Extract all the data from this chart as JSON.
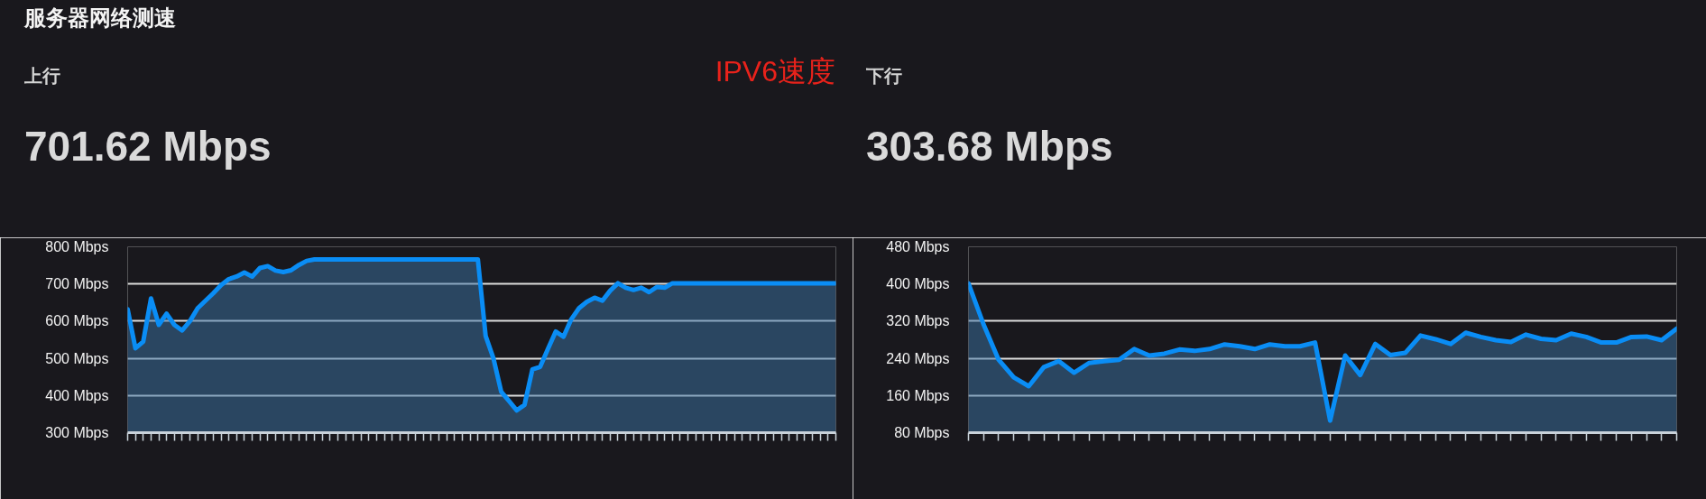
{
  "chart_data": [
    {
      "type": "area",
      "title": "上行",
      "subtitle": "701.62 Mbps",
      "annotations": [
        "服务器网络测速",
        "IPV6速度"
      ],
      "categories": [
        null,
        null,
        null,
        null,
        null,
        null,
        null,
        null,
        null,
        null,
        null,
        null,
        null,
        null,
        null,
        null,
        null,
        null,
        null,
        null,
        null,
        null,
        null,
        null,
        null,
        null,
        null,
        null,
        null,
        null,
        null,
        null,
        null,
        null,
        null,
        null,
        null,
        null,
        null,
        null,
        null,
        null,
        null,
        null,
        null,
        null,
        null,
        null,
        null,
        null,
        null,
        null,
        null,
        null,
        null,
        null,
        null,
        null,
        null,
        null,
        null,
        null,
        null,
        null,
        null,
        null,
        null,
        null,
        null,
        null,
        null,
        null,
        null,
        null,
        null,
        null,
        null,
        null,
        null,
        null,
        null,
        null,
        null,
        null,
        null,
        null,
        null,
        null,
        null,
        null,
        null,
        null
      ],
      "series": [
        {
          "color": "#0a8df5",
          "values": [
            632,
            527,
            545,
            661,
            590,
            620,
            590,
            575,
            600,
            635,
            655,
            675,
            697,
            713,
            720,
            731,
            720,
            743,
            748,
            736,
            732,
            737,
            751,
            762,
            766,
            766,
            766,
            766,
            766,
            766,
            766,
            766,
            766,
            766,
            766,
            766,
            766,
            766,
            766,
            766,
            766,
            766,
            766,
            766,
            766,
            766,
            560,
            500,
            410,
            385,
            360,
            375,
            470,
            477,
            525,
            572,
            558,
            605,
            635,
            652,
            663,
            655,
            682,
            702,
            690,
            684,
            690,
            678,
            692,
            690,
            702,
            702,
            702,
            702,
            702,
            702,
            702,
            702,
            702,
            702,
            702,
            702,
            702,
            702,
            702,
            702,
            702,
            702,
            702,
            702,
            702,
            702
          ]
        }
      ],
      "ylim": [
        300,
        800
      ],
      "yticks": [
        {
          "value": 300,
          "label": "300 Mbps"
        },
        {
          "value": 400,
          "label": "400 Mbps"
        },
        {
          "value": 500,
          "label": "500 Mbps"
        },
        {
          "value": 600,
          "label": "600 Mbps"
        },
        {
          "value": 700,
          "label": "700 Mbps"
        },
        {
          "value": 800,
          "label": "800 Mbps"
        }
      ],
      "grid": "y",
      "tick_labels": "y"
    },
    {
      "type": "area",
      "title": "下行",
      "subtitle": "303.68 Mbps",
      "categories": [
        null,
        null,
        null,
        null,
        null,
        null,
        null,
        null,
        null,
        null,
        null,
        null,
        null,
        null,
        null,
        null,
        null,
        null,
        null,
        null,
        null,
        null,
        null,
        null,
        null,
        null,
        null,
        null,
        null,
        null,
        null,
        null,
        null,
        null,
        null,
        null,
        null,
        null,
        null,
        null,
        null,
        null,
        null,
        null,
        null,
        null,
        null,
        null
      ],
      "series": [
        {
          "color": "#0a8df5",
          "values": [
            401,
            313,
            237,
            199,
            180,
            221,
            234,
            209,
            230,
            234,
            237,
            260,
            246,
            250,
            259,
            256,
            260,
            270,
            266,
            260,
            270,
            266,
            266,
            274,
            106,
            246,
            204,
            271,
            247,
            252,
            289,
            281,
            271,
            295,
            286,
            279,
            275,
            291,
            282,
            279,
            293,
            286,
            274,
            274,
            286,
            287,
            279,
            304
          ]
        }
      ],
      "ylim": [
        80,
        480
      ],
      "yticks": [
        {
          "value": 80,
          "label": "80 Mbps"
        },
        {
          "value": 160,
          "label": "160 Mbps"
        },
        {
          "value": 240,
          "label": "240 Mbps"
        },
        {
          "value": 320,
          "label": "320 Mbps"
        },
        {
          "value": 400,
          "label": "400 Mbps"
        },
        {
          "value": 480,
          "label": "480 Mbps"
        }
      ],
      "grid": "y",
      "tick_labels": "y"
    }
  ]
}
